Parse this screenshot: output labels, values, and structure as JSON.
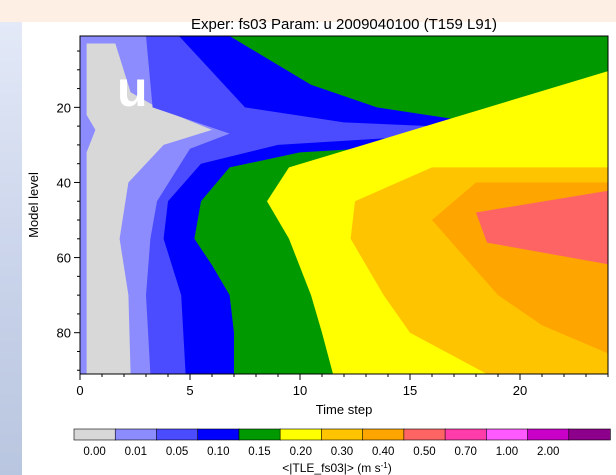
{
  "chart_data": {
    "type": "heatmap",
    "title": "Exper: fs03  Param: u  2009040100  (T159 L91)",
    "panel_label": "u",
    "xlabel": "Time step",
    "ylabel": "Model level",
    "xlim": [
      0,
      24
    ],
    "ylim": [
      91,
      1
    ],
    "y_inverted": true,
    "x_ticks": [
      0,
      5,
      10,
      15,
      20
    ],
    "y_ticks": [
      20,
      40,
      60,
      80
    ],
    "colorbar": {
      "label": "<|TLE_fs03|> (m s",
      "label_superscript": "-1",
      "label_suffix": ")",
      "levels": [
        "0.00",
        "0.01",
        "0.05",
        "0.10",
        "0.15",
        "0.20",
        "0.30",
        "0.40",
        "0.50",
        "0.70",
        "1.00",
        "2.00"
      ],
      "colors": [
        "#d8d8d8",
        "#8c8cff",
        "#4b4bff",
        "#0000ff",
        "#009a00",
        "#ffff00",
        "#ffc400",
        "#ffa500",
        "#ff6464",
        "#ff3caa",
        "#ff5aff",
        "#c800c8",
        "#8c008c"
      ]
    },
    "contours": [
      {
        "level": "0.00",
        "color": "#d8d8d8",
        "boundary_time_step": [
          [
            3,
            0.3
          ],
          [
            22,
            0.3
          ],
          [
            26,
            0.7
          ],
          [
            32,
            0.3
          ],
          [
            50,
            0.3
          ],
          [
            91,
            0.3
          ]
        ]
      },
      {
        "level": "0.01",
        "color": "#8c8cff",
        "boundary_time_step": [
          [
            1,
            1.5
          ],
          [
            16,
            2.3
          ],
          [
            20,
            3.5
          ],
          [
            26,
            6.0
          ],
          [
            30,
            3.8
          ],
          [
            40,
            2.2
          ],
          [
            55,
            1.8
          ],
          [
            70,
            2.2
          ],
          [
            91,
            2.3
          ]
        ]
      },
      {
        "level": "0.05",
        "color": "#4b4bff",
        "boundary_time_step": [
          [
            1,
            3.0
          ],
          [
            20,
            3.3
          ],
          [
            27,
            6.8
          ],
          [
            31,
            5.0
          ],
          [
            45,
            3.5
          ],
          [
            55,
            3.2
          ],
          [
            70,
            3.0
          ],
          [
            91,
            3.2
          ]
        ]
      },
      {
        "level": "0.10",
        "color": "#0000ff",
        "boundary_time_step": [
          [
            1,
            4.5
          ],
          [
            20,
            7.5
          ],
          [
            24,
            12.0
          ],
          [
            26,
            20.0
          ],
          [
            30,
            9.0
          ],
          [
            35,
            5.5
          ],
          [
            45,
            4.0
          ],
          [
            55,
            3.8
          ],
          [
            70,
            4.6
          ],
          [
            91,
            4.8
          ]
        ]
      },
      {
        "level": "0.15",
        "color": "#009a00",
        "boundary_time_step": [
          [
            1,
            6.8
          ],
          [
            14,
            10.5
          ],
          [
            20,
            13.5
          ],
          [
            24,
            18.0
          ],
          [
            28,
            21.5
          ],
          [
            32,
            10.0
          ],
          [
            36,
            6.8
          ],
          [
            45,
            5.5
          ],
          [
            55,
            5.2
          ],
          [
            62,
            6.0
          ],
          [
            70,
            6.8
          ],
          [
            80,
            7.0
          ],
          [
            91,
            7.0
          ]
        ]
      },
      {
        "level": "0.20",
        "color": "#ffff00",
        "boundary_time_step": [
          [
            1,
            24.2
          ],
          [
            10,
            24.2
          ],
          [
            36,
            9.5
          ],
          [
            45,
            8.5
          ],
          [
            55,
            9.5
          ],
          [
            70,
            10.5
          ],
          [
            80,
            11.0
          ],
          [
            91,
            11.5
          ]
        ]
      },
      {
        "level": "0.30",
        "color": "#ffc400",
        "boundary_time_step": [
          [
            36,
            16.0
          ],
          [
            45,
            12.5
          ],
          [
            55,
            12.3
          ],
          [
            70,
            13.8
          ],
          [
            80,
            15.0
          ],
          [
            91,
            18.5
          ]
        ]
      },
      {
        "level": "0.40",
        "color": "#ffa500",
        "boundary_time_step": [
          [
            40,
            18.0
          ],
          [
            50,
            16.0
          ],
          [
            60,
            17.5
          ],
          [
            70,
            19.0
          ],
          [
            78,
            21.0
          ],
          [
            86,
            24.2
          ],
          [
            91,
            24.2
          ]
        ]
      },
      {
        "level": "0.50",
        "color": "#ff6464",
        "boundary_time_step": [
          [
            42,
            24.2
          ],
          [
            48,
            18.0
          ],
          [
            56,
            18.5
          ],
          [
            62,
            24.2
          ]
        ]
      }
    ]
  }
}
